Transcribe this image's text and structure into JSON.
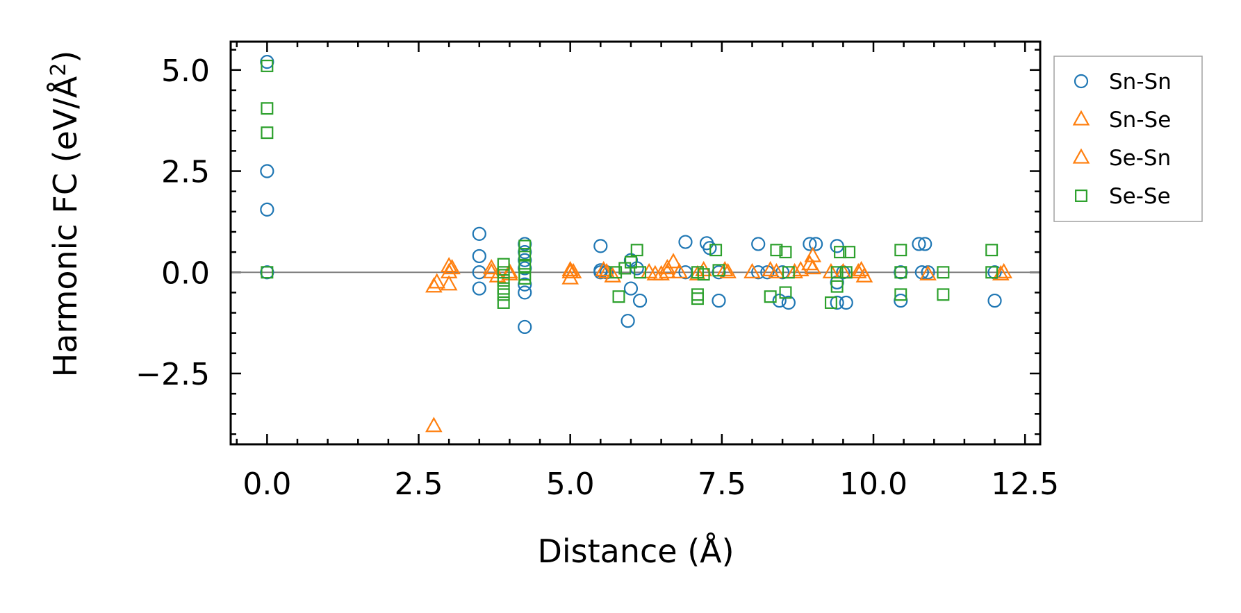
{
  "chart_data": {
    "type": "scatter",
    "title": "",
    "xlabel": "Distance (Å)",
    "ylabel_main": "Harmonic FC (eV/Å",
    "ylabel_sup": "2",
    "ylabel_close": ")",
    "xlim": [
      -0.6,
      12.75
    ],
    "ylim": [
      -4.25,
      5.7
    ],
    "x_ticks": [
      0.0,
      2.5,
      5.0,
      7.5,
      10.0,
      12.5
    ],
    "x_tick_labels": [
      "0.0",
      "2.5",
      "5.0",
      "7.5",
      "10.0",
      "12.5"
    ],
    "y_ticks": [
      -2.5,
      0.0,
      2.5,
      5.0
    ],
    "y_tick_labels": [
      "−2.5",
      "0.0",
      "2.5",
      "5.0"
    ],
    "x_minor_step": 0.5,
    "y_minor_step": 0.5,
    "reference_line_y": 0.0,
    "legend_position": "outside-right-top",
    "series": [
      {
        "name": "Sn-Sn",
        "marker": "circle",
        "color": "#1f77b4",
        "points": [
          [
            0.0,
            5.2
          ],
          [
            0.0,
            2.5
          ],
          [
            0.0,
            1.55
          ],
          [
            0.0,
            0.0
          ],
          [
            3.5,
            0.95
          ],
          [
            3.5,
            0.4
          ],
          [
            3.5,
            0.0
          ],
          [
            3.5,
            -0.4
          ],
          [
            4.25,
            0.7
          ],
          [
            4.25,
            0.5
          ],
          [
            4.25,
            0.3
          ],
          [
            4.25,
            0.1
          ],
          [
            4.25,
            -0.3
          ],
          [
            4.25,
            -0.5
          ],
          [
            4.25,
            -1.35
          ],
          [
            5.5,
            0.65
          ],
          [
            5.5,
            0.05
          ],
          [
            5.5,
            0.0
          ],
          [
            5.6,
            0.0
          ],
          [
            5.95,
            -1.2
          ],
          [
            6.0,
            0.3
          ],
          [
            6.0,
            -0.4
          ],
          [
            6.1,
            0.1
          ],
          [
            6.15,
            -0.7
          ],
          [
            6.9,
            0.75
          ],
          [
            6.9,
            0.0
          ],
          [
            7.25,
            0.72
          ],
          [
            7.3,
            0.6
          ],
          [
            7.45,
            -0.7
          ],
          [
            7.45,
            0.0
          ],
          [
            8.1,
            0.7
          ],
          [
            8.1,
            0.0
          ],
          [
            8.25,
            0.0
          ],
          [
            8.45,
            -0.7
          ],
          [
            8.6,
            -0.75
          ],
          [
            8.5,
            0.0
          ],
          [
            8.95,
            0.7
          ],
          [
            9.05,
            0.7
          ],
          [
            9.4,
            0.65
          ],
          [
            9.4,
            -0.75
          ],
          [
            9.4,
            -0.25
          ],
          [
            9.55,
            -0.75
          ],
          [
            9.5,
            0.0
          ],
          [
            10.45,
            -0.7
          ],
          [
            10.45,
            0.0
          ],
          [
            10.75,
            0.7
          ],
          [
            10.85,
            0.7
          ],
          [
            10.8,
            0.0
          ],
          [
            10.9,
            0.0
          ],
          [
            12.0,
            -0.7
          ],
          [
            12.0,
            0.0
          ]
        ]
      },
      {
        "name": "Sn-Se",
        "marker": "triangle",
        "color": "#ff7f0e",
        "points": [
          [
            2.75,
            -3.8
          ],
          [
            2.75,
            -0.35
          ],
          [
            2.8,
            -0.25
          ],
          [
            3.0,
            -0.3
          ],
          [
            3.0,
            0.0
          ],
          [
            3.0,
            0.15
          ],
          [
            3.7,
            0.0
          ],
          [
            3.8,
            -0.1
          ],
          [
            4.0,
            0.0
          ],
          [
            5.0,
            -0.15
          ],
          [
            5.0,
            0.0
          ],
          [
            5.0,
            0.05
          ],
          [
            5.6,
            0.0
          ],
          [
            5.7,
            -0.1
          ],
          [
            6.3,
            0.0
          ],
          [
            6.5,
            -0.05
          ],
          [
            6.6,
            0.1
          ],
          [
            6.7,
            0.25
          ],
          [
            6.8,
            0.0
          ],
          [
            7.2,
            0.05
          ],
          [
            7.6,
            0.0
          ],
          [
            8.0,
            0.0
          ],
          [
            8.3,
            0.05
          ],
          [
            8.7,
            0.0
          ],
          [
            9.0,
            0.4
          ],
          [
            9.0,
            0.1
          ],
          [
            9.3,
            0.0
          ],
          [
            9.8,
            0.05
          ],
          [
            9.85,
            -0.1
          ],
          [
            10.9,
            -0.05
          ],
          [
            12.1,
            -0.05
          ]
        ]
      },
      {
        "name": "Se-Sn",
        "marker": "triangle",
        "color": "#ff7f0e",
        "points": [
          [
            3.05,
            0.1
          ],
          [
            3.7,
            0.1
          ],
          [
            4.0,
            -0.05
          ],
          [
            5.05,
            0.0
          ],
          [
            5.55,
            0.05
          ],
          [
            6.4,
            -0.05
          ],
          [
            6.6,
            0.0
          ],
          [
            7.1,
            -0.05
          ],
          [
            7.55,
            0.05
          ],
          [
            8.4,
            0.0
          ],
          [
            8.8,
            0.05
          ],
          [
            8.95,
            0.2
          ],
          [
            9.5,
            0.0
          ],
          [
            9.75,
            0.0
          ],
          [
            12.15,
            0.0
          ]
        ]
      },
      {
        "name": "Se-Se",
        "marker": "square",
        "color": "#2ca02c",
        "points": [
          [
            0.0,
            5.1
          ],
          [
            0.0,
            4.05
          ],
          [
            0.0,
            3.45
          ],
          [
            0.0,
            0.0
          ],
          [
            3.9,
            0.2
          ],
          [
            3.9,
            0.0
          ],
          [
            3.9,
            -0.2
          ],
          [
            3.9,
            -0.4
          ],
          [
            3.9,
            -0.55
          ],
          [
            3.9,
            -0.75
          ],
          [
            4.25,
            0.65
          ],
          [
            4.25,
            0.45
          ],
          [
            4.25,
            0.15
          ],
          [
            4.25,
            -0.05
          ],
          [
            4.25,
            -0.15
          ],
          [
            5.75,
            0.0
          ],
          [
            5.8,
            -0.6
          ],
          [
            5.9,
            0.1
          ],
          [
            6.0,
            0.25
          ],
          [
            6.1,
            0.55
          ],
          [
            6.15,
            0.0
          ],
          [
            7.1,
            0.0
          ],
          [
            7.1,
            -0.55
          ],
          [
            7.1,
            -0.65
          ],
          [
            7.2,
            -0.05
          ],
          [
            7.4,
            0.55
          ],
          [
            7.45,
            0.05
          ],
          [
            8.3,
            -0.6
          ],
          [
            8.4,
            0.55
          ],
          [
            8.55,
            0.5
          ],
          [
            8.6,
            0.0
          ],
          [
            8.55,
            -0.5
          ],
          [
            9.3,
            -0.75
          ],
          [
            9.4,
            0.0
          ],
          [
            9.4,
            -0.35
          ],
          [
            9.45,
            0.5
          ],
          [
            9.6,
            0.5
          ],
          [
            9.55,
            0.0
          ],
          [
            10.45,
            0.55
          ],
          [
            10.45,
            0.0
          ],
          [
            10.45,
            -0.55
          ],
          [
            11.15,
            0.0
          ],
          [
            11.15,
            -0.55
          ],
          [
            11.95,
            0.55
          ],
          [
            11.95,
            0.0
          ]
        ]
      }
    ]
  }
}
